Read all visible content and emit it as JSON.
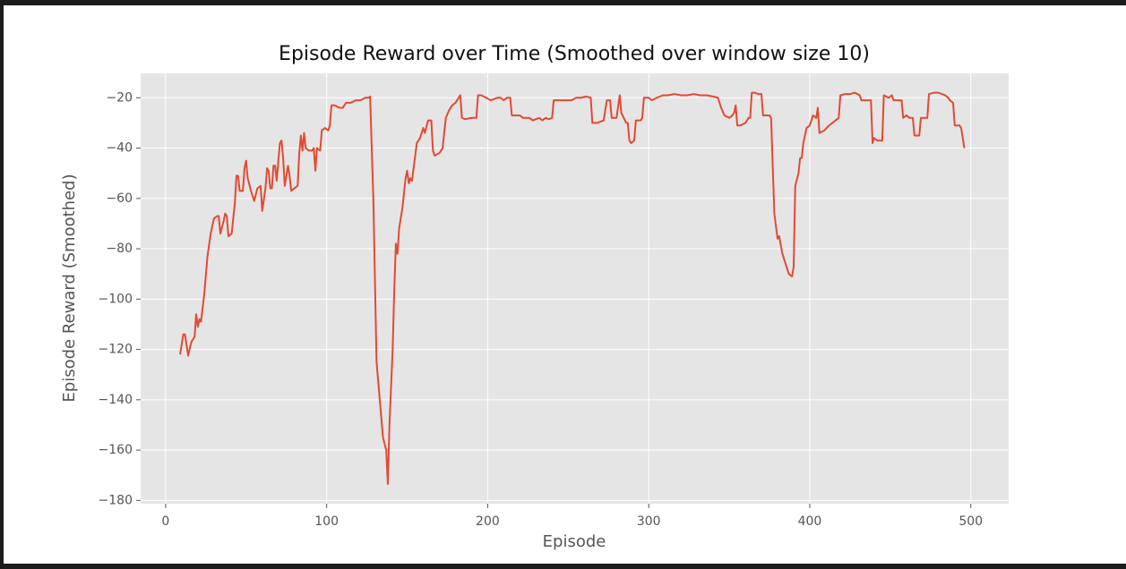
{
  "chart_data": {
    "type": "line",
    "title": "Episode Reward over Time (Smoothed over window size 10)",
    "x_label": "Episode",
    "y_label": "Episode Reward (Smoothed)",
    "color": "#E24A33",
    "grid": true,
    "xlim": [
      -15.5,
      523.5
    ],
    "ylim": [
      -181.3,
      -10.3
    ],
    "xticks": [
      0,
      100,
      200,
      300,
      400,
      500
    ],
    "yticks": [
      {
        "value": -180,
        "label": "−180"
      },
      {
        "value": -160,
        "label": "−160"
      },
      {
        "value": -140,
        "label": "−140"
      },
      {
        "value": -120,
        "label": "−120"
      },
      {
        "value": -100,
        "label": "−100"
      },
      {
        "value": -80,
        "label": "−80"
      },
      {
        "value": -60,
        "label": "−60"
      },
      {
        "value": -40,
        "label": "−40"
      },
      {
        "value": -20,
        "label": "−20"
      }
    ],
    "x": [
      9,
      11,
      12,
      14,
      16,
      18,
      19,
      20,
      21,
      22,
      24,
      26,
      28,
      30,
      32,
      33,
      34,
      36,
      37,
      38,
      39,
      41,
      43,
      44,
      45,
      46,
      48,
      49,
      50,
      51,
      53,
      55,
      57,
      59,
      60,
      62,
      63,
      64,
      65,
      66,
      67,
      68,
      69,
      70,
      71,
      72,
      73,
      74,
      76,
      77,
      78,
      80,
      82,
      83,
      84,
      85,
      86,
      87,
      89,
      91,
      92,
      93,
      94,
      96,
      97,
      99,
      101,
      102,
      103,
      105,
      108,
      110,
      112,
      115,
      118,
      121,
      124,
      126,
      127,
      129,
      131,
      133,
      135,
      137,
      138,
      139,
      141,
      142,
      143,
      144,
      145,
      147,
      148,
      149,
      150,
      151,
      152,
      153,
      155,
      156,
      158,
      160,
      161,
      163,
      165,
      166,
      167,
      170,
      172,
      174,
      176,
      178,
      180,
      182,
      183,
      184,
      186,
      190,
      193,
      194,
      196,
      199,
      202,
      206,
      208,
      210,
      212,
      214,
      215,
      220,
      222,
      226,
      228,
      232,
      234,
      236,
      238,
      240,
      241,
      244,
      248,
      252,
      255,
      258,
      261,
      264,
      265,
      268,
      272,
      274,
      276,
      277,
      280,
      282,
      283,
      286,
      287,
      288,
      289,
      291,
      292,
      295,
      296,
      297,
      300,
      302,
      305,
      309,
      312,
      316,
      320,
      324,
      328,
      332,
      336,
      340,
      343,
      345,
      347,
      350,
      352,
      353,
      354,
      355,
      357,
      360,
      362,
      363,
      364,
      366,
      368,
      370,
      371,
      375,
      376,
      378,
      380,
      381,
      383,
      385,
      387,
      389,
      390,
      391,
      393,
      394,
      395,
      396,
      398,
      400,
      402,
      404,
      405,
      406,
      409,
      412,
      414,
      418,
      419,
      422,
      425,
      428,
      431,
      432,
      438,
      439,
      440,
      442,
      445,
      446,
      449,
      451,
      452,
      457,
      458,
      460,
      462,
      464,
      465,
      468,
      469,
      471,
      473,
      474,
      477,
      480,
      482,
      484,
      486,
      487,
      489,
      490,
      493,
      494,
      496
    ],
    "values": [
      -122,
      -114,
      -114,
      -122.5,
      -117,
      -115,
      -106,
      -111,
      -108,
      -109,
      -98,
      -83,
      -74,
      -68,
      -67,
      -67,
      -74,
      -69,
      -66,
      -67,
      -75,
      -74,
      -62,
      -51,
      -51,
      -57,
      -57,
      -48,
      -45,
      -52,
      -57,
      -61,
      -56,
      -55,
      -65,
      -56,
      -48,
      -49,
      -56,
      -56,
      -47,
      -47,
      -53,
      -45,
      -38,
      -37,
      -44,
      -55,
      -47,
      -51,
      -57,
      -56,
      -55,
      -42,
      -35,
      -41,
      -34,
      -40,
      -41,
      -41,
      -40,
      -49,
      -40,
      -41,
      -33,
      -32,
      -33,
      -31,
      -23,
      -23,
      -24,
      -24,
      -22,
      -22,
      -21,
      -21,
      -20,
      -20,
      -19.5,
      -60,
      -125,
      -140,
      -155,
      -160,
      -173.5,
      -150,
      -120,
      -96,
      -78,
      -82,
      -72,
      -64,
      -58,
      -52,
      -49,
      -54,
      -52,
      -53,
      -43,
      -38,
      -36,
      -32,
      -34,
      -29,
      -29,
      -41,
      -43,
      -42,
      -40,
      -28,
      -25,
      -23,
      -22,
      -20,
      -19,
      -28,
      -28.5,
      -28,
      -28,
      -19,
      -19,
      -20,
      -21,
      -20,
      -20,
      -21,
      -20,
      -20,
      -27,
      -27,
      -28,
      -28,
      -29,
      -28,
      -29,
      -28,
      -28.5,
      -28,
      -21,
      -21,
      -21,
      -21,
      -20,
      -20,
      -19.5,
      -20,
      -30,
      -30,
      -29,
      -21,
      -21,
      -28,
      -28,
      -19,
      -26,
      -30,
      -30,
      -37,
      -38,
      -37,
      -29,
      -29,
      -28,
      -20,
      -20,
      -21,
      -20,
      -19,
      -19,
      -18.5,
      -19,
      -19,
      -18.5,
      -19,
      -19,
      -19.5,
      -20,
      -24,
      -27,
      -28,
      -27,
      -26,
      -23,
      -31,
      -31,
      -30,
      -28,
      -28,
      -18,
      -18,
      -18.5,
      -18.5,
      -27,
      -27,
      -28,
      -66,
      -76,
      -75,
      -82,
      -86,
      -90,
      -91,
      -87,
      -55,
      -50,
      -44,
      -44,
      -38,
      -32,
      -31,
      -27,
      -28,
      -24,
      -34,
      -33,
      -31,
      -30,
      -28,
      -19,
      -18.5,
      -18.5,
      -18,
      -19,
      -21,
      -21,
      -38,
      -36,
      -37,
      -37,
      -19,
      -20,
      -19,
      -21,
      -21,
      -28,
      -27,
      -28,
      -28,
      -35,
      -35,
      -28,
      -28,
      -28,
      -18.5,
      -18,
      -18,
      -18.5,
      -19,
      -20,
      -21,
      -22,
      -31,
      -31,
      -32,
      -40
    ]
  }
}
